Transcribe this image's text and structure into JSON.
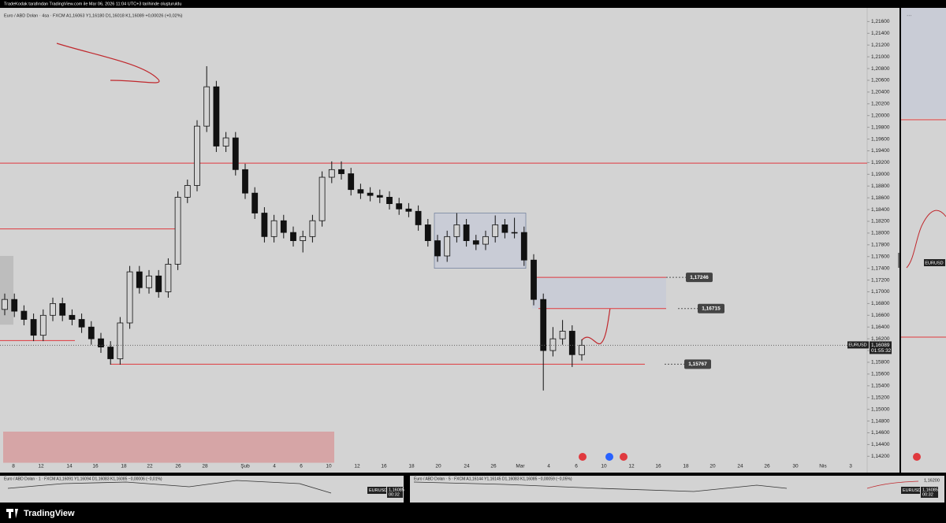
{
  "header": "TradeKodak tarafından TradingView.com ile Mar 06, 2026 11:04 UTC+3 tarihinde oluşturuldu",
  "footer": "TradingView",
  "chart_data": {
    "type": "candlestick",
    "legend_text": "Euro / ABD Doları · 4sa · FXCM  A1,16063  Y1,16180  D1,16018  K1,16089  +0,00026 (+0,02%)",
    "open": [
      1.167,
      1.1687,
      1.1667,
      1.1653,
      1.1626,
      1.166,
      1.168,
      1.166,
      1.1653,
      1.164,
      1.162,
      1.1606,
      1.1586,
      1.1647,
      1.1734,
      1.1707,
      1.1727,
      1.17,
      1.1747,
      1.1861,
      1.1881,
      1.1982,
      1.2049,
      1.1948,
      1.1962,
      1.1908,
      1.1868,
      1.1834,
      1.1794,
      1.1821,
      1.1801,
      1.1787,
      1.1794,
      1.1821,
      1.1895,
      1.1908,
      1.1901,
      1.1874,
      1.1868,
      1.1864,
      1.1861,
      1.185,
      1.1841,
      1.1837,
      1.1814,
      1.1787,
      1.1761,
      1.1794,
      1.1814,
      1.1787,
      1.1781,
      1.1794,
      1.1814,
      1.1801,
      1.1801,
      1.1754,
      1.1687,
      1.16,
      1.162,
      1.1633,
      1.1593
    ],
    "high": [
      1.1697,
      1.1697,
      1.1677,
      1.1663,
      1.167,
      1.169,
      1.169,
      1.167,
      1.1663,
      1.165,
      1.163,
      1.1616,
      1.1657,
      1.1744,
      1.1744,
      1.1737,
      1.1737,
      1.1757,
      1.1871,
      1.1891,
      1.1992,
      1.2084,
      1.2059,
      1.1972,
      1.1972,
      1.1918,
      1.1878,
      1.1844,
      1.1831,
      1.1831,
      1.1811,
      1.1804,
      1.1831,
      1.1905,
      1.1922,
      1.1922,
      1.1911,
      1.1884,
      1.1878,
      1.1874,
      1.1871,
      1.186,
      1.1851,
      1.1847,
      1.1824,
      1.1797,
      1.1804,
      1.1834,
      1.1824,
      1.1797,
      1.1804,
      1.183,
      1.1824,
      1.1826,
      1.1811,
      1.1764,
      1.1697,
      1.164,
      1.1652,
      1.1643,
      1.1619
    ],
    "low": [
      1.166,
      1.1657,
      1.1643,
      1.1616,
      1.1616,
      1.165,
      1.165,
      1.1643,
      1.163,
      1.161,
      1.1596,
      1.1576,
      1.1576,
      1.1637,
      1.1697,
      1.1697,
      1.169,
      1.169,
      1.1737,
      1.1851,
      1.1871,
      1.1972,
      1.1938,
      1.1938,
      1.1898,
      1.1858,
      1.1824,
      1.1784,
      1.1784,
      1.1791,
      1.1777,
      1.1767,
      1.1784,
      1.1811,
      1.1885,
      1.1891,
      1.1864,
      1.1858,
      1.1854,
      1.1851,
      1.184,
      1.1831,
      1.1827,
      1.1804,
      1.1777,
      1.1751,
      1.1751,
      1.1784,
      1.1777,
      1.1771,
      1.1771,
      1.1784,
      1.1791,
      1.1791,
      1.1744,
      1.1677,
      1.1532,
      1.159,
      1.161,
      1.1572,
      1.1583
    ],
    "close": [
      1.1687,
      1.1667,
      1.1653,
      1.1626,
      1.166,
      1.168,
      1.166,
      1.1653,
      1.164,
      1.162,
      1.1606,
      1.1586,
      1.1647,
      1.1734,
      1.1707,
      1.1727,
      1.17,
      1.1747,
      1.1861,
      1.1881,
      1.1982,
      1.2049,
      1.1948,
      1.1962,
      1.1908,
      1.1868,
      1.1834,
      1.1794,
      1.1821,
      1.1801,
      1.1787,
      1.1794,
      1.1821,
      1.1895,
      1.1908,
      1.1901,
      1.1874,
      1.1868,
      1.1864,
      1.1861,
      1.185,
      1.1841,
      1.1837,
      1.1814,
      1.1787,
      1.1761,
      1.1794,
      1.1814,
      1.1787,
      1.1781,
      1.1794,
      1.1814,
      1.1801,
      1.1801,
      1.1754,
      1.1687,
      1.16,
      1.162,
      1.1633,
      1.1593,
      1.1609
    ],
    "up_color": "#d3d3d3",
    "down_color": "#111111",
    "wick_color": "#111111",
    "ylim": [
      1.1405,
      1.219
    ],
    "yticks": [
      {
        "value": 1.142,
        "label": "1,14200"
      },
      {
        "value": 1.144,
        "label": "1,14400"
      },
      {
        "value": 1.146,
        "label": "1,14600"
      },
      {
        "value": 1.148,
        "label": "1,14800"
      },
      {
        "value": 1.15,
        "label": "1,15000"
      },
      {
        "value": 1.152,
        "label": "1,15200"
      },
      {
        "value": 1.154,
        "label": "1,15400"
      },
      {
        "value": 1.156,
        "label": "1,15600"
      },
      {
        "value": 1.158,
        "label": "1,15800"
      },
      {
        "value": 1.16,
        "label": "1,16000"
      },
      {
        "value": 1.162,
        "label": "1,16200"
      },
      {
        "value": 1.164,
        "label": "1,16400"
      },
      {
        "value": 1.166,
        "label": "1,16600"
      },
      {
        "value": 1.168,
        "label": "1,16800"
      },
      {
        "value": 1.17,
        "label": "1,17000"
      },
      {
        "value": 1.172,
        "label": "1,17200"
      },
      {
        "value": 1.174,
        "label": "1,17400"
      },
      {
        "value": 1.176,
        "label": "1,17600"
      },
      {
        "value": 1.178,
        "label": "1,17800"
      },
      {
        "value": 1.18,
        "label": "1,18000"
      },
      {
        "value": 1.182,
        "label": "1,18200"
      },
      {
        "value": 1.184,
        "label": "1,18400"
      },
      {
        "value": 1.186,
        "label": "1,18600"
      },
      {
        "value": 1.188,
        "label": "1,18800"
      },
      {
        "value": 1.19,
        "label": "1,19000"
      },
      {
        "value": 1.192,
        "label": "1,19200"
      },
      {
        "value": 1.194,
        "label": "1,19400"
      },
      {
        "value": 1.196,
        "label": "1,19600"
      },
      {
        "value": 1.198,
        "label": "1,19800"
      },
      {
        "value": 1.2,
        "label": "1,20000"
      },
      {
        "value": 1.202,
        "label": "1,20200"
      },
      {
        "value": 1.204,
        "label": "1,20400"
      },
      {
        "value": 1.206,
        "label": "1,20600"
      },
      {
        "value": 1.208,
        "label": "1,20800"
      },
      {
        "value": 1.21,
        "label": "1,21000"
      },
      {
        "value": 1.212,
        "label": "1,21200"
      },
      {
        "value": 1.214,
        "label": "1,21400"
      },
      {
        "value": 1.216,
        "label": "1,21600"
      }
    ],
    "xtick_labels": [
      "8",
      "12",
      "14",
      "16",
      "18",
      "22",
      "26",
      "28",
      "Şub",
      "4",
      "6",
      "10",
      "12",
      "16",
      "18",
      "20",
      "24",
      "26",
      "Mar",
      "4",
      "6",
      "10",
      "12",
      "16",
      "18",
      "20",
      "24",
      "26",
      "30",
      "Nis",
      "3"
    ],
    "hlines": [
      1.1919,
      1.1807,
      1.1617,
      1.15767
    ],
    "hline_color": "#e0393e",
    "zones": [
      {
        "top": 1.1834,
        "bottom": 1.174,
        "color": "#c9ccd6"
      },
      {
        "top": 1.17246,
        "bottom": 1.16715,
        "color": "#c9ccd6"
      },
      {
        "top": 1.1761,
        "bottom": 1.1644,
        "color": "#bdbdbd"
      },
      {
        "top": 1.1462,
        "bottom": 1.1409,
        "color": "#d6a5a6"
      }
    ],
    "price_labels": [
      {
        "value": 1.17246,
        "label": "1,17246"
      },
      {
        "value": 1.16715,
        "label": "1,16715"
      },
      {
        "value": 1.15767,
        "label": "1,15767"
      }
    ],
    "last_price": {
      "value": 1.16089,
      "label": "1,16089"
    },
    "symbol": "EURUSD",
    "countdown": "01:55:32"
  },
  "panels": [
    {
      "legend": "Euro / ABD Doları · 1 · FXCM  A1,16091  Y1,16094  D1,16083  K1,16085  −0,00006 (−0,01%)",
      "symbol": "EURUSD",
      "price": "1,16085",
      "countdown": "00:32"
    },
    {
      "legend": "Euro / ABD Doları · 5 · FXCM  A1,16144  Y1,16145  D1,16083  K1,16085  −0,00059 (−0,05%)",
      "symbol": "EURUSD",
      "price": "1,16085",
      "countdown": "00:32"
    },
    {
      "tick": "1,16200",
      "symbol": "EURUSD",
      "price": "1,16085",
      "countdown": "00:32"
    }
  ],
  "side_panel": {
    "symbol": "EURUSD"
  }
}
